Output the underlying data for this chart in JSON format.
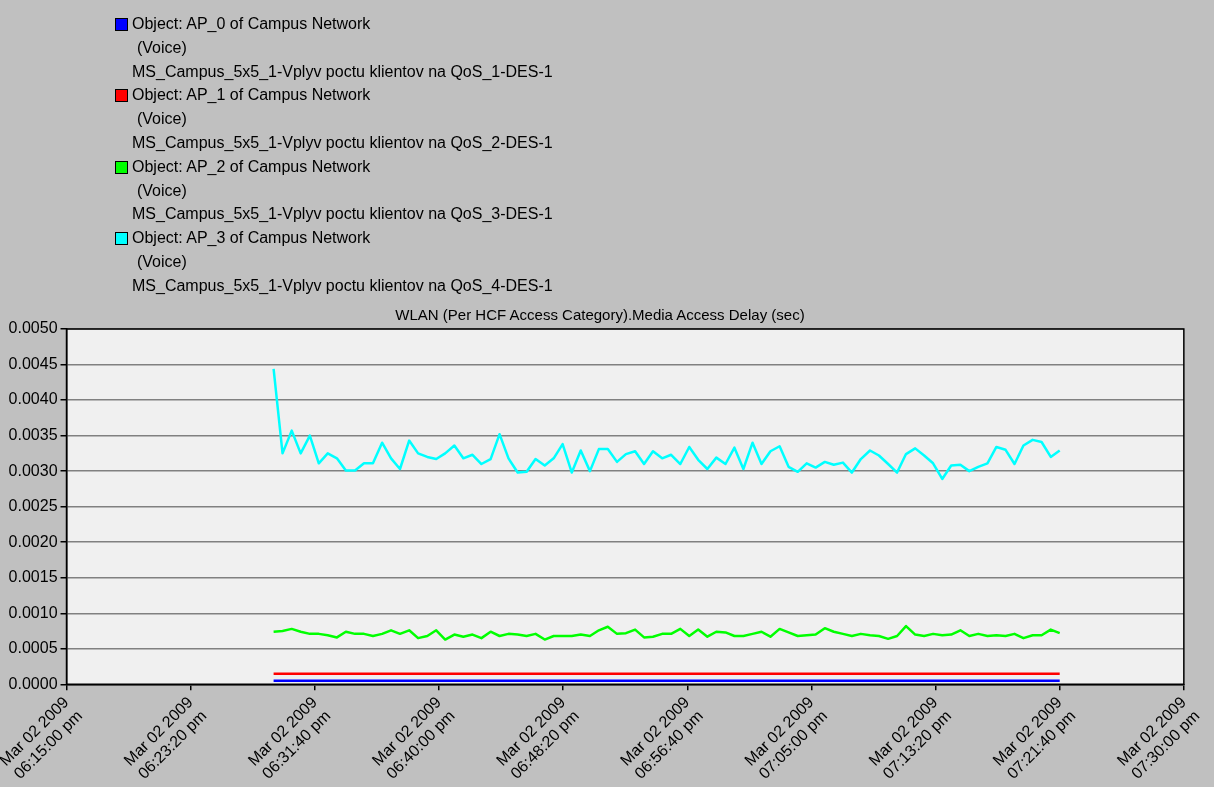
{
  "chart_data": {
    "type": "line",
    "title": "WLAN (Per HCF Access Category).Media Access Delay (sec)",
    "x": [
      "2009-03-02T18:28:54",
      "2009-03-02T18:29:30",
      "2009-03-02T18:30:07",
      "2009-03-02T18:30:43",
      "2009-03-02T18:31:20",
      "2009-03-02T18:31:56",
      "2009-03-02T18:32:32",
      "2009-03-02T18:33:09",
      "2009-03-02T18:33:45",
      "2009-03-02T18:34:22",
      "2009-03-02T18:34:58",
      "2009-03-02T18:35:34",
      "2009-03-02T18:36:11",
      "2009-03-02T18:36:47",
      "2009-03-02T18:37:23",
      "2009-03-02T18:38:00",
      "2009-03-02T18:38:36",
      "2009-03-02T18:39:13",
      "2009-03-02T18:39:49",
      "2009-03-02T18:40:25",
      "2009-03-02T18:41:02",
      "2009-03-02T18:41:38",
      "2009-03-02T18:42:15",
      "2009-03-02T18:42:51",
      "2009-03-02T18:43:28",
      "2009-03-02T18:44:04",
      "2009-03-02T18:44:40",
      "2009-03-02T18:45:17",
      "2009-03-02T18:45:53",
      "2009-03-02T18:46:29",
      "2009-03-02T18:47:06",
      "2009-03-02T18:47:42",
      "2009-03-02T18:48:18",
      "2009-03-02T18:48:55",
      "2009-03-02T18:49:31",
      "2009-03-02T18:50:08",
      "2009-03-02T18:50:44",
      "2009-03-02T18:51:20",
      "2009-03-02T18:51:57",
      "2009-03-02T18:52:33",
      "2009-03-02T18:53:10",
      "2009-03-02T18:53:46",
      "2009-03-02T18:54:22",
      "2009-03-02T18:54:59",
      "2009-03-02T18:55:35",
      "2009-03-02T18:56:12",
      "2009-03-02T18:56:48",
      "2009-03-02T18:57:24",
      "2009-03-02T18:58:01",
      "2009-03-02T18:58:37",
      "2009-03-02T18:59:14",
      "2009-03-02T18:59:50",
      "2009-03-02T19:00:26",
      "2009-03-02T19:01:03",
      "2009-03-02T19:01:39",
      "2009-03-02T19:02:15",
      "2009-03-02T19:02:52",
      "2009-03-02T19:03:28",
      "2009-03-02T19:04:05",
      "2009-03-02T19:04:41",
      "2009-03-02T19:05:17",
      "2009-03-02T19:05:54",
      "2009-03-02T19:06:30",
      "2009-03-02T19:07:07",
      "2009-03-02T19:07:43",
      "2009-03-02T19:08:19",
      "2009-03-02T19:08:56",
      "2009-03-02T19:09:32",
      "2009-03-02T19:10:09",
      "2009-03-02T19:10:45",
      "2009-03-02T19:11:21",
      "2009-03-02T19:11:58",
      "2009-03-02T19:12:34",
      "2009-03-02T19:13:10",
      "2009-03-02T19:13:47",
      "2009-03-02T19:14:23",
      "2009-03-02T19:15:00",
      "2009-03-02T19:15:36",
      "2009-03-02T19:16:12",
      "2009-03-02T19:16:49",
      "2009-03-02T19:17:25",
      "2009-03-02T19:18:02",
      "2009-03-02T19:18:38",
      "2009-03-02T19:19:14",
      "2009-03-02T19:19:51",
      "2009-03-02T19:20:27",
      "2009-03-02T19:21:04",
      "2009-03-02T19:21:40"
    ],
    "series": [
      {
        "name": "Object: AP_0 of Campus Network\n(Voice)\nMS_Campus_5x5_1-Vplyv poctu klientov na QoS_1-DES-1",
        "color": "#0000ff",
        "values": [
          5e-05,
          5e-05,
          5e-05,
          5e-05,
          5e-05,
          5e-05,
          5e-05,
          5e-05,
          5e-05,
          5e-05,
          5e-05,
          5e-05,
          5e-05,
          5e-05,
          5e-05,
          5e-05,
          5e-05,
          5e-05,
          5e-05,
          5e-05,
          5e-05,
          5e-05,
          5e-05,
          5e-05,
          5e-05,
          5e-05,
          5e-05,
          5e-05,
          5e-05,
          5e-05,
          5e-05,
          5e-05,
          5e-05,
          5e-05,
          5e-05,
          5e-05,
          5e-05,
          5e-05,
          5e-05,
          5e-05,
          5e-05,
          5e-05,
          5e-05,
          5e-05,
          5e-05,
          5e-05,
          5e-05,
          5e-05,
          5e-05,
          5e-05,
          5e-05,
          5e-05,
          5e-05,
          5e-05,
          5e-05,
          5e-05,
          5e-05,
          5e-05,
          5e-05,
          5e-05,
          5e-05,
          5e-05,
          5e-05,
          5e-05,
          5e-05,
          5e-05,
          5e-05,
          5e-05,
          5e-05,
          5e-05,
          5e-05,
          5e-05,
          5e-05,
          5e-05,
          5e-05,
          5e-05,
          5e-05,
          5e-05,
          5e-05,
          5e-05,
          5e-05,
          5e-05,
          5e-05,
          5e-05,
          5e-05,
          5e-05,
          5e-05,
          5e-05
        ]
      },
      {
        "name": "Object: AP_1 of Campus Network\n(Voice)\nMS_Campus_5x5_1-Vplyv poctu klientov na QoS_2-DES-1",
        "color": "#ff0000",
        "values": [
          0.00015,
          0.00015,
          0.00015,
          0.00015,
          0.00015,
          0.00015,
          0.00015,
          0.00015,
          0.00015,
          0.00015,
          0.00015,
          0.00015,
          0.00015,
          0.00015,
          0.00015,
          0.00015,
          0.00015,
          0.00015,
          0.00015,
          0.00015,
          0.00015,
          0.00015,
          0.00015,
          0.00015,
          0.00015,
          0.00015,
          0.00015,
          0.00015,
          0.00015,
          0.00015,
          0.00015,
          0.00015,
          0.00015,
          0.00015,
          0.00015,
          0.00015,
          0.00015,
          0.00015,
          0.00015,
          0.00015,
          0.00015,
          0.00015,
          0.00015,
          0.00015,
          0.00015,
          0.00015,
          0.00015,
          0.00015,
          0.00015,
          0.00015,
          0.00015,
          0.00015,
          0.00015,
          0.00015,
          0.00015,
          0.00015,
          0.00015,
          0.00015,
          0.00015,
          0.00015,
          0.00015,
          0.00015,
          0.00015,
          0.00015,
          0.00015,
          0.00015,
          0.00015,
          0.00015,
          0.00015,
          0.00015,
          0.00015,
          0.00015,
          0.00015,
          0.00015,
          0.00015,
          0.00015,
          0.00015,
          0.00015,
          0.00015,
          0.00015,
          0.00015,
          0.00015,
          0.00015,
          0.00015,
          0.00015,
          0.00015,
          0.00015,
          0.00015
        ]
      },
      {
        "name": "Object: AP_2 of Campus Network\n(Voice)\nMS_Campus_5x5_1-Vplyv poctu klientov na QoS_3-DES-1",
        "color": "#00ff00",
        "values": [
          0.00074,
          0.00075,
          0.00078,
          0.00074,
          0.00071,
          0.00071,
          0.00069,
          0.00066,
          0.00074,
          0.00071,
          0.00071,
          0.00068,
          0.00071,
          0.00076,
          0.00071,
          0.00076,
          0.00065,
          0.00068,
          0.00076,
          0.00063,
          0.0007,
          0.00067,
          0.0007,
          0.00065,
          0.00074,
          0.00068,
          0.00071,
          0.0007,
          0.00068,
          0.00071,
          0.00063,
          0.00068,
          0.00068,
          0.00068,
          0.0007,
          0.00068,
          0.00076,
          0.00081,
          0.00071,
          0.00072,
          0.00077,
          0.00066,
          0.00067,
          0.00071,
          0.00071,
          0.00078,
          0.00068,
          0.00077,
          0.00067,
          0.00074,
          0.00073,
          0.00068,
          0.00068,
          0.00071,
          0.00074,
          0.00067,
          0.00078,
          0.00073,
          0.00068,
          0.00069,
          0.0007,
          0.00079,
          0.00074,
          0.00071,
          0.00068,
          0.00071,
          0.00069,
          0.00068,
          0.00064,
          0.00068,
          0.00082,
          0.0007,
          0.00068,
          0.00071,
          0.00069,
          0.0007,
          0.00076,
          0.00068,
          0.00071,
          0.00068,
          0.00069,
          0.00068,
          0.00071,
          0.00065,
          0.00069,
          0.00069,
          0.00077,
          0.00072
        ]
      },
      {
        "name": "Object: AP_3 of Campus Network\n(Voice)\nMS_Campus_5x5_1-Vplyv poctu klientov na QoS_4-DES-1",
        "color": "#00ffff",
        "values": [
          0.00444,
          0.00325,
          0.00357,
          0.00325,
          0.0035,
          0.00311,
          0.00325,
          0.00318,
          0.00301,
          0.00301,
          0.00311,
          0.00311,
          0.0034,
          0.00318,
          0.00303,
          0.00343,
          0.00325,
          0.0032,
          0.00317,
          0.00325,
          0.00336,
          0.00318,
          0.00323,
          0.0031,
          0.00317,
          0.00352,
          0.00318,
          0.00298,
          0.00299,
          0.00317,
          0.00308,
          0.00318,
          0.00338,
          0.00298,
          0.00329,
          0.003,
          0.00331,
          0.00331,
          0.00313,
          0.00324,
          0.00328,
          0.0031,
          0.00328,
          0.00318,
          0.00323,
          0.0031,
          0.00334,
          0.00316,
          0.00303,
          0.00319,
          0.0031,
          0.00333,
          0.00303,
          0.0034,
          0.0031,
          0.00328,
          0.00335,
          0.00306,
          0.00299,
          0.00311,
          0.00305,
          0.00313,
          0.00309,
          0.00312,
          0.00298,
          0.00317,
          0.00329,
          0.00322,
          0.0031,
          0.00298,
          0.00324,
          0.00332,
          0.00322,
          0.00311,
          0.00289,
          0.00308,
          0.00309,
          0.003,
          0.00306,
          0.00311,
          0.00334,
          0.0033,
          0.0031,
          0.00336,
          0.00344,
          0.00341,
          0.0032,
          0.00329
        ]
      }
    ],
    "xlim": [
      "2009-03-02T18:15:00",
      "2009-03-02T19:30:00"
    ],
    "xticks": [
      {
        "value": "2009-03-02T18:15:00",
        "label": "Mar 02 2009\n06:15:00 pm"
      },
      {
        "value": "2009-03-02T18:23:20",
        "label": "Mar 02 2009\n06:23:20 pm"
      },
      {
        "value": "2009-03-02T18:31:40",
        "label": "Mar 02 2009\n06:31:40 pm"
      },
      {
        "value": "2009-03-02T18:40:00",
        "label": "Mar 02 2009\n06:40:00 pm"
      },
      {
        "value": "2009-03-02T18:48:20",
        "label": "Mar 02 2009\n06:48:20 pm"
      },
      {
        "value": "2009-03-02T18:56:40",
        "label": "Mar 02 2009\n06:56:40 pm"
      },
      {
        "value": "2009-03-02T19:05:00",
        "label": "Mar 02 2009\n07:05:00 pm"
      },
      {
        "value": "2009-03-02T19:13:20",
        "label": "Mar 02 2009\n07:13:20 pm"
      },
      {
        "value": "2009-03-02T19:21:40",
        "label": "Mar 02 2009\n07:21:40 pm"
      },
      {
        "value": "2009-03-02T19:30:00",
        "label": "Mar 02 2009\n07:30:00 pm"
      }
    ],
    "ylim": [
      0,
      0.005
    ],
    "yticks": [
      {
        "value": 0,
        "label": "0.0000"
      },
      {
        "value": 0.0005,
        "label": "0.0005"
      },
      {
        "value": 0.001,
        "label": "0.0010"
      },
      {
        "value": 0.0015,
        "label": "0.0015"
      },
      {
        "value": 0.002,
        "label": "0.0020"
      },
      {
        "value": 0.0025,
        "label": "0.0025"
      },
      {
        "value": 0.003,
        "label": "0.0030"
      },
      {
        "value": 0.0035,
        "label": "0.0035"
      },
      {
        "value": 0.004,
        "label": "0.0040"
      },
      {
        "value": 0.0045,
        "label": "0.0045"
      },
      {
        "value": 0.005,
        "label": "0.0050"
      }
    ],
    "grid": "y",
    "legend": "top left",
    "marker": "none",
    "line_style": "solid"
  }
}
